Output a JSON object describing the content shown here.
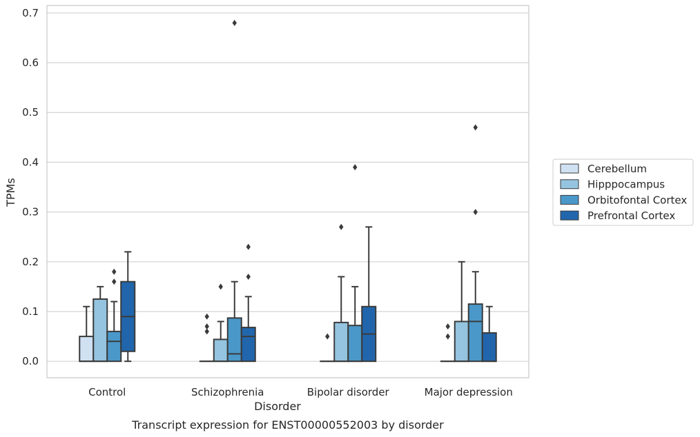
{
  "caption": "Transcript expression for ENST00000552003 by disorder",
  "chart_data": {
    "type": "box",
    "xlabel": "Disorder",
    "ylabel": "TPMs",
    "ylim": [
      -0.033,
      0.715
    ],
    "yticks": [
      0.0,
      0.1,
      0.2,
      0.3,
      0.4,
      0.5,
      0.6,
      0.7
    ],
    "ytick_labels": [
      "0.0",
      "0.1",
      "0.2",
      "0.3",
      "0.4",
      "0.5",
      "0.6",
      "0.7"
    ],
    "grid": "horizontal",
    "legend_position": "right",
    "categories": [
      "Control",
      "Schizophrenia",
      "Bipolar disorder",
      "Major depression"
    ],
    "series": [
      {
        "name": "Cerebellum",
        "color": "#d0e1f2",
        "boxes": [
          {
            "q1": 0.0,
            "median": 0.0,
            "q3": 0.05,
            "whisker_low": 0.0,
            "whisker_high": 0.11,
            "outliers": []
          },
          {
            "q1": 0.0,
            "median": 0.0,
            "q3": 0.0,
            "whisker_low": 0.0,
            "whisker_high": 0.0,
            "outliers": [
              0.06,
              0.07,
              0.09
            ]
          },
          {
            "q1": 0.0,
            "median": 0.0,
            "q3": 0.0,
            "whisker_low": 0.0,
            "whisker_high": 0.0,
            "outliers": [
              0.05
            ]
          },
          {
            "q1": 0.0,
            "median": 0.0,
            "q3": 0.0,
            "whisker_low": 0.0,
            "whisker_high": 0.0,
            "outliers": [
              0.05,
              0.07
            ]
          }
        ]
      },
      {
        "name": "Hipppocampus",
        "color": "#94c4df",
        "boxes": [
          {
            "q1": 0.0,
            "median": 0.0,
            "q3": 0.125,
            "whisker_low": 0.0,
            "whisker_high": 0.15,
            "outliers": []
          },
          {
            "q1": 0.0,
            "median": 0.0,
            "q3": 0.044,
            "whisker_low": 0.0,
            "whisker_high": 0.08,
            "outliers": [
              0.15
            ]
          },
          {
            "q1": 0.0,
            "median": 0.0,
            "q3": 0.078,
            "whisker_low": 0.0,
            "whisker_high": 0.17,
            "outliers": [
              0.27
            ]
          },
          {
            "q1": 0.0,
            "median": 0.0,
            "q3": 0.08,
            "whisker_low": 0.0,
            "whisker_high": 0.2,
            "outliers": []
          }
        ]
      },
      {
        "name": "Orbitofontal Cortex",
        "color": "#4a98c9",
        "boxes": [
          {
            "q1": 0.0,
            "median": 0.04,
            "q3": 0.06,
            "whisker_low": 0.0,
            "whisker_high": 0.12,
            "outliers": [
              0.16,
              0.18
            ]
          },
          {
            "q1": 0.0,
            "median": 0.015,
            "q3": 0.087,
            "whisker_low": 0.0,
            "whisker_high": 0.16,
            "outliers": [
              0.68
            ]
          },
          {
            "q1": 0.0,
            "median": 0.0,
            "q3": 0.072,
            "whisker_low": 0.0,
            "whisker_high": 0.15,
            "outliers": [
              0.39
            ]
          },
          {
            "q1": 0.0,
            "median": 0.08,
            "q3": 0.115,
            "whisker_low": 0.0,
            "whisker_high": 0.18,
            "outliers": [
              0.3,
              0.47
            ]
          }
        ]
      },
      {
        "name": "Prefrontal Cortex",
        "color": "#2166ac",
        "boxes": [
          {
            "q1": 0.02,
            "median": 0.09,
            "q3": 0.16,
            "whisker_low": 0.0,
            "whisker_high": 0.22,
            "outliers": []
          },
          {
            "q1": 0.0,
            "median": 0.05,
            "q3": 0.068,
            "whisker_low": 0.0,
            "whisker_high": 0.13,
            "outliers": [
              0.17,
              0.23
            ]
          },
          {
            "q1": 0.0,
            "median": 0.055,
            "q3": 0.11,
            "whisker_low": 0.0,
            "whisker_high": 0.27,
            "outliers": []
          },
          {
            "q1": 0.0,
            "median": 0.0,
            "q3": 0.057,
            "whisker_low": 0.0,
            "whisker_high": 0.11,
            "outliers": []
          }
        ]
      }
    ]
  }
}
